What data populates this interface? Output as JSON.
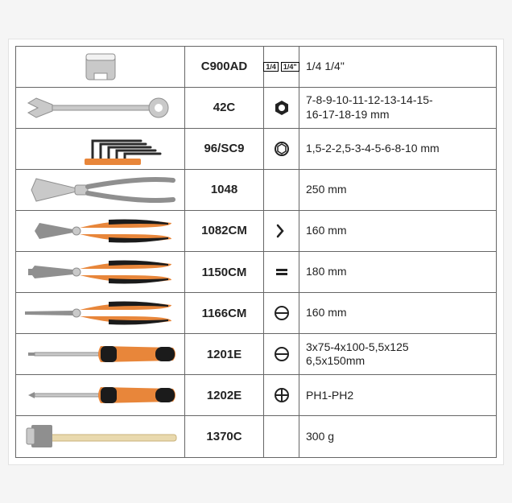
{
  "table": {
    "border_color": "#666666",
    "rows": [
      {
        "code": "C900AD",
        "spec": "1/4  1/4\"",
        "tool_type": "socket",
        "icon": "quarter"
      },
      {
        "code": "42C",
        "spec": "7-8-9-10-11-12-13-14-15-\n16-17-18-19 mm",
        "tool_type": "combo-wrench",
        "icon": "hexnut"
      },
      {
        "code": "96/SC9",
        "spec": "1,5-2-2,5-3-4-5-6-8-10 mm",
        "tool_type": "hex-keys",
        "icon": "hexsocket"
      },
      {
        "code": "1048",
        "spec": "250 mm",
        "tool_type": "slip-joint-pliers",
        "icon": ""
      },
      {
        "code": "1082CM",
        "spec": "160 mm",
        "tool_type": "diagonal-cutters",
        "icon": "cutter"
      },
      {
        "code": "1150CM",
        "spec": "180 mm",
        "tool_type": "combination-pliers",
        "icon": "equals"
      },
      {
        "code": "1166CM",
        "spec": "160 mm",
        "tool_type": "long-nose-pliers",
        "icon": "flatcircle"
      },
      {
        "code": "1201E",
        "spec": "3x75-4x100-5,5x125\n6,5x150mm",
        "tool_type": "flat-screwdriver",
        "icon": "flatcircle"
      },
      {
        "code": "1202E",
        "spec": "PH1-PH2",
        "tool_type": "phillips-screwdriver",
        "icon": "phillips"
      },
      {
        "code": "1370C",
        "spec": "300 g",
        "tool_type": "hammer",
        "icon": ""
      }
    ],
    "colors": {
      "handle_orange": "#e8863a",
      "handle_black": "#1b1b1b",
      "steel": "#c9c9c9",
      "steel_dark": "#8f8f8f",
      "wood": "#e9d9ae",
      "hexkey": "#2b2b2b"
    }
  }
}
